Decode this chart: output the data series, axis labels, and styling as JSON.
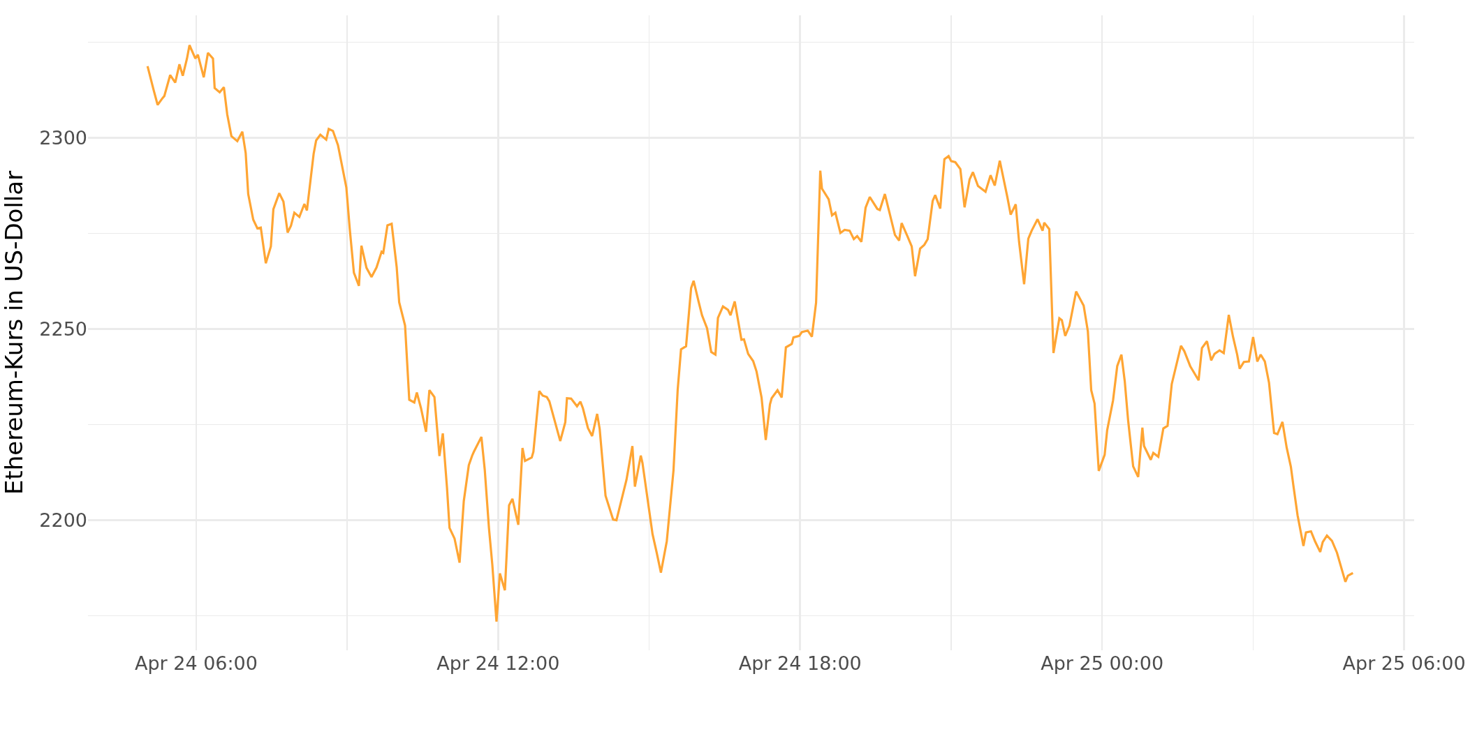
{
  "chart_data": {
    "type": "line",
    "ylabel": "Ethereum-Kurs in US-Dollar",
    "x": [
      "--04-24T05:02",
      "--04-24T05:09",
      "--04-24T05:14",
      "--04-24T05:20",
      "--04-24T05:22",
      "--04-24T05:29",
      "--04-24T05:35",
      "--04-24T05:40",
      "--04-24T05:44",
      "--04-24T05:49",
      "--04-24T05:52",
      "--04-24T05:59",
      "--04-24T06:02",
      "--04-24T06:09",
      "--04-24T06:14",
      "--04-24T06:20",
      "--04-24T06:22",
      "--04-24T06:28",
      "--04-24T06:33",
      "--04-24T06:37",
      "--04-24T06:42",
      "--04-24T06:49",
      "--04-24T06:55",
      "--04-24T06:59",
      "--04-24T07:02",
      "--04-24T07:08",
      "--04-24T07:13",
      "--04-24T07:17",
      "--04-24T07:23",
      "--04-24T07:29",
      "--04-24T07:32",
      "--04-24T07:39",
      "--04-24T07:44",
      "--04-24T07:49",
      "--04-24T07:53",
      "--04-24T07:57",
      "--04-24T08:03",
      "--04-24T08:09",
      "--04-24T08:12",
      "--04-24T08:20",
      "--04-24T08:23",
      "--04-24T08:28",
      "--04-24T08:35",
      "--04-24T08:38",
      "--04-24T08:43",
      "--04-24T08:49",
      "--04-24T08:59",
      "--04-24T09:03",
      "--04-24T09:08",
      "--04-24T09:14",
      "--04-24T09:17",
      "--04-24T09:23",
      "--04-24T09:29",
      "--04-24T09:35",
      "--04-24T09:41",
      "--04-24T09:43",
      "--04-24T09:48",
      "--04-24T09:53",
      "--04-24T09:59",
      "--04-24T10:02",
      "--04-24T10:09",
      "--04-24T10:14",
      "--04-24T10:20",
      "--04-24T10:23",
      "--04-24T10:28",
      "--04-24T10:34",
      "--04-24T10:38",
      "--04-24T10:44",
      "--04-24T10:50",
      "--04-24T10:54",
      "--04-24T10:59",
      "--04-24T11:02",
      "--04-24T11:08",
      "--04-24T11:14",
      "--04-24T11:19",
      "--04-24T11:25",
      "--04-24T11:29",
      "--04-24T11:31",
      "--04-24T11:40",
      "--04-24T11:44",
      "--04-24T11:49",
      "--04-24T11:53",
      "--04-24T11:58",
      "--04-24T12:02",
      "--04-24T12:08",
      "--04-24T12:13",
      "--04-24T12:17",
      "--04-24T12:24",
      "--04-24T12:29",
      "--04-24T12:32",
      "--04-24T12:40",
      "--04-24T12:42",
      "--04-24T12:49",
      "--04-24T12:53",
      "--04-24T12:58",
      "--04-24T13:01",
      "--04-24T13:14",
      "--04-24T13:20",
      "--04-24T13:22",
      "--04-24T13:27",
      "--04-24T13:34",
      "--04-24T13:38",
      "--04-24T13:41",
      "--04-24T13:47",
      "--04-24T13:52",
      "--04-24T13:58",
      "--04-24T14:01",
      "--04-24T14:08",
      "--04-24T14:17",
      "--04-24T14:21",
      "--04-24T14:28",
      "--04-24T14:33",
      "--04-24T14:40",
      "--04-24T14:43",
      "--04-24T14:50",
      "--04-24T14:52",
      "--04-24T15:04",
      "--04-24T15:09",
      "--04-24T15:14",
      "--04-24T15:21",
      "--04-24T15:29",
      "--04-24T15:34",
      "--04-24T15:38",
      "--04-24T15:44",
      "--04-24T15:50",
      "--04-24T15:53",
      "--04-24T15:59",
      "--04-24T16:03",
      "--04-24T16:09",
      "--04-24T16:14",
      "--04-24T16:19",
      "--04-24T16:22",
      "--04-24T16:28",
      "--04-24T16:34",
      "--04-24T16:37",
      "--04-24T16:42",
      "--04-24T16:50",
      "--04-24T16:53",
      "--04-24T16:58",
      "--04-24T17:04",
      "--04-24T17:08",
      "--04-24T17:14",
      "--04-24T17:19",
      "--04-24T17:24",
      "--04-24T17:26",
      "--04-24T17:33",
      "--04-24T17:38",
      "--04-24T17:43",
      "--04-24T17:50",
      "--04-24T17:52",
      "--04-24T17:59",
      "--04-24T18:02",
      "--04-24T18:09",
      "--04-24T18:14",
      "--04-24T18:19",
      "--04-24T18:24",
      "--04-24T18:26",
      "--04-24T18:34",
      "--04-24T18:38",
      "--04-24T18:42",
      "--04-24T18:48",
      "--04-24T18:53",
      "--04-24T18:59",
      "--04-24T19:04",
      "--04-24T19:08",
      "--04-24T19:13",
      "--04-24T19:18",
      "--04-24T19:23",
      "--04-24T19:32",
      "--04-24T19:35",
      "--04-24T19:41",
      "--04-24T19:53",
      "--04-24T19:58",
      "--04-24T20:01",
      "--04-24T20:08",
      "--04-24T20:13",
      "--04-24T20:17",
      "--04-24T20:23",
      "--04-24T20:28",
      "--04-24T20:32",
      "--04-24T20:38",
      "--04-24T20:41",
      "--04-24T20:47",
      "--04-24T20:52",
      "--04-24T20:57",
      "--04-24T21:00",
      "--04-24T21:05",
      "--04-24T21:11",
      "--04-24T21:16",
      "--04-24T21:22",
      "--04-24T21:26",
      "--04-24T21:32",
      "--04-24T21:41",
      "--04-24T21:47",
      "--04-24T21:52",
      "--04-24T21:58",
      "--04-24T22:07",
      "--04-24T22:11",
      "--04-24T22:17",
      "--04-24T22:21",
      "--04-24T22:27",
      "--04-24T22:32",
      "--04-24T22:36",
      "--04-24T22:43",
      "--04-24T22:49",
      "--04-24T22:51",
      "--04-24T22:57",
      "--04-24T23:02",
      "--04-24T23:09",
      "--04-24T23:12",
      "--04-24T23:16",
      "--04-24T23:21",
      "--04-24T23:29",
      "--04-24T23:38",
      "--04-24T23:43",
      "--04-24T23:47",
      "--04-24T23:51",
      "--04-24T23:56",
      "--04-25T00:03",
      "--04-25T00:06",
      "--04-25T00:13",
      "--04-25T00:18",
      "--04-25T00:23",
      "--04-25T00:27",
      "--04-25T00:31",
      "--04-25T00:37",
      "--04-25T00:43",
      "--04-25T00:48",
      "--04-25T00:50",
      "--04-25T00:58",
      "--04-25T01:01",
      "--04-25T01:07",
      "--04-25T01:13",
      "--04-25T01:18",
      "--04-25T01:23",
      "--04-25T01:34",
      "--04-25T01:38",
      "--04-25T01:45",
      "--04-25T01:55",
      "--04-25T01:59",
      "--04-25T02:05",
      "--04-25T02:10",
      "--04-25T02:14",
      "--04-25T02:20",
      "--04-25T02:25",
      "--04-25T02:31",
      "--04-25T02:36",
      "--04-25T02:41",
      "--04-25T02:44",
      "--04-25T02:49",
      "--04-25T02:55",
      "--04-25T03:00",
      "--04-25T03:05",
      "--04-25T03:09",
      "--04-25T03:14",
      "--04-25T03:19",
      "--04-25T03:25",
      "--04-25T03:29",
      "--04-25T03:35",
      "--04-25T03:40",
      "--04-25T03:45",
      "--04-25T03:48",
      "--04-25T03:53",
      "--04-25T04:00",
      "--04-25T04:03",
      "--04-25T04:09",
      "--04-25T04:14",
      "--04-25T04:20",
      "--04-25T04:23",
      "--04-25T04:28",
      "--04-25T04:34",
      "--04-25T04:40",
      "--04-25T04:50",
      "--04-25T04:53",
      "--04-25T04:59"
    ],
    "series": [
      {
        "color": "#ffa533",
        "values": [
          2318.7,
          2312.7,
          2308.6,
          2310.4,
          2310.9,
          2316.4,
          2314.4,
          2319.2,
          2316.2,
          2320.7,
          2324.2,
          2320.7,
          2321.7,
          2315.8,
          2322.2,
          2320.7,
          2313.0,
          2311.9,
          2313.2,
          2306.1,
          2300.4,
          2299.1,
          2301.6,
          2296.0,
          2285.3,
          2278.6,
          2276.3,
          2276.5,
          2267.2,
          2271.6,
          2281.3,
          2285.5,
          2283.3,
          2275.2,
          2277.0,
          2280.4,
          2279.3,
          2282.7,
          2281.0,
          2295.8,
          2299.3,
          2300.8,
          2299.5,
          2302.3,
          2301.8,
          2298.1,
          2287.0,
          2276.3,
          2264.7,
          2261.3,
          2271.8,
          2266.0,
          2263.6,
          2266.1,
          2270.2,
          2269.9,
          2277.1,
          2277.5,
          2266.2,
          2257.0,
          2250.9,
          2231.5,
          2230.8,
          2233.4,
          2229.3,
          2223.1,
          2234.0,
          2232.2,
          2216.8,
          2222.7,
          2208.5,
          2198.0,
          2195.2,
          2188.9,
          2205.0,
          2214.4,
          2216.9,
          2217.9,
          2221.8,
          2213.2,
          2198.0,
          2188.4,
          2173.5,
          2186.1,
          2181.7,
          2203.9,
          2205.6,
          2198.8,
          2218.9,
          2215.5,
          2216.4,
          2217.9,
          2233.8,
          2232.6,
          2232.2,
          2231.1,
          2220.7,
          2225.6,
          2231.9,
          2231.8,
          2229.8,
          2231.0,
          2229.3,
          2224.1,
          2222.0,
          2227.8,
          2223.9,
          2206.4,
          2200.2,
          2200.0,
          2206.2,
          2210.6,
          2219.4,
          2208.8,
          2216.9,
          2215.0,
          2196.4,
          2191.5,
          2186.3,
          2194.5,
          2213.0,
          2234.1,
          2244.7,
          2245.5,
          2260.7,
          2262.6,
          2257.1,
          2253.6,
          2250.2,
          2244.0,
          2243.3,
          2252.9,
          2255.9,
          2255.0,
          2253.6,
          2257.2,
          2247.2,
          2247.3,
          2243.5,
          2241.6,
          2238.9,
          2232.1,
          2221.0,
          2230.3,
          2231.9,
          2234.0,
          2232.1,
          2245.2,
          2246.1,
          2247.8,
          2248.2,
          2249.2,
          2249.6,
          2248.0,
          2256.9,
          2291.4,
          2286.7,
          2283.9,
          2279.7,
          2280.4,
          2275.1,
          2275.9,
          2275.7,
          2273.5,
          2274.3,
          2272.8,
          2281.7,
          2284.5,
          2281.4,
          2281.1,
          2285.3,
          2274.6,
          2273.1,
          2277.7,
          2274.2,
          2271.6,
          2263.8,
          2271.0,
          2272.0,
          2273.5,
          2283.5,
          2285.0,
          2281.5,
          2294.4,
          2295.2,
          2293.9,
          2293.6,
          2291.8,
          2281.8,
          2289.1,
          2291.0,
          2287.4,
          2285.9,
          2290.2,
          2287.5,
          2294.0,
          2284.5,
          2279.9,
          2282.6,
          2272.8,
          2261.7,
          2273.6,
          2275.7,
          2278.7,
          2275.7,
          2277.8,
          2276.1,
          2243.7,
          2252.8,
          2252.3,
          2248.2,
          2250.8,
          2259.8,
          2256.1,
          2249.4,
          2234.0,
          2230.5,
          2212.9,
          2217.1,
          2223.5,
          2231.3,
          2240.3,
          2243.3,
          2236.3,
          2226.1,
          2214.1,
          2211.3,
          2224.2,
          2219.4,
          2215.8,
          2217.6,
          2216.6,
          2224.0,
          2224.7,
          2235.6,
          2245.6,
          2244.2,
          2240.3,
          2236.6,
          2245.0,
          2246.8,
          2241.8,
          2243.5,
          2244.4,
          2243.7,
          2253.7,
          2248.0,
          2243.3,
          2239.6,
          2241.4,
          2241.5,
          2247.9,
          2241.5,
          2243.3,
          2241.5,
          2235.9,
          2222.8,
          2222.5,
          2225.7,
          2219.0,
          2214.0,
          2209.1,
          2201.3,
          2193.3,
          2196.8,
          2197.1,
          2194.4,
          2191.7,
          2194.3,
          2196.0,
          2194.6,
          2191.5,
          2183.9,
          2185.5,
          2186.2
        ]
      }
    ],
    "xlim": [
      "--04-24T03:51",
      "--04-25T06:12"
    ],
    "xticks": [
      {
        "value": "--04-24T06:00",
        "label": "Apr 24 06:00"
      },
      {
        "value": "--04-24T09:00",
        "label": null
      },
      {
        "value": "--04-24T12:00",
        "label": "Apr 24 12:00"
      },
      {
        "value": "--04-24T15:00",
        "label": null
      },
      {
        "value": "--04-24T18:00",
        "label": "Apr 24 18:00"
      },
      {
        "value": "--04-24T21:00",
        "label": null
      },
      {
        "value": "--04-25T00:00",
        "label": "Apr 25 00:00"
      },
      {
        "value": "--04-25T03:00",
        "label": null
      },
      {
        "value": "--04-25T06:00",
        "label": "Apr 25 06:00"
      }
    ],
    "ylim": [
      2166,
      2332
    ],
    "yticks": [
      {
        "value": 2175,
        "label": null
      },
      2200,
      {
        "value": 2225,
        "label": null
      },
      2250,
      {
        "value": 2275,
        "label": null
      },
      2300,
      {
        "value": 2325,
        "label": null
      }
    ],
    "grid": true
  }
}
